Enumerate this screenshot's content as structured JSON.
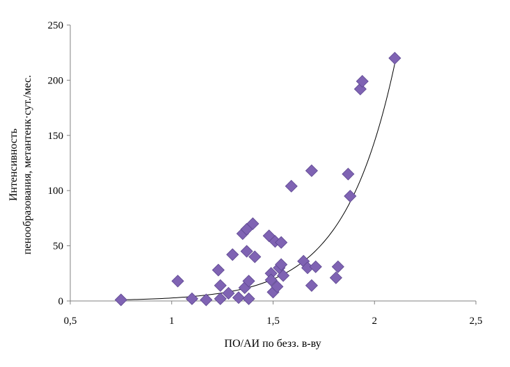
{
  "chart_data": {
    "type": "scatter",
    "title": "",
    "xlabel": "ПО/АИ по безз. в-ву",
    "ylabel_lines": [
      "Интенсивность",
      "пенообразования, метантенк·сут./мес."
    ],
    "xlim": [
      0.5,
      2.5
    ],
    "ylim": [
      0,
      250
    ],
    "xticks": [
      0.5,
      1,
      1.5,
      2,
      2.5
    ],
    "xtick_labels": [
      "0,5",
      "1",
      "1,5",
      "2",
      "2,5"
    ],
    "yticks": [
      0,
      50,
      100,
      150,
      200,
      250
    ],
    "ytick_labels": [
      "0",
      "50",
      "100",
      "150",
      "200",
      "250"
    ],
    "grid": false,
    "marker": "diamond",
    "marker_color": "#7f63b3",
    "trendline": {
      "type": "exponential",
      "x_range": [
        0.75,
        2.1
      ],
      "points": [
        [
          0.75,
          1.0
        ],
        [
          2.1,
          215.0
        ]
      ]
    },
    "points": [
      [
        0.75,
        1
      ],
      [
        1.03,
        18
      ],
      [
        1.1,
        2
      ],
      [
        1.17,
        1
      ],
      [
        1.23,
        28
      ],
      [
        1.24,
        14
      ],
      [
        1.24,
        2
      ],
      [
        1.28,
        7
      ],
      [
        1.3,
        42
      ],
      [
        1.33,
        3
      ],
      [
        1.35,
        61
      ],
      [
        1.36,
        12
      ],
      [
        1.37,
        45
      ],
      [
        1.37,
        65
      ],
      [
        1.38,
        18
      ],
      [
        1.38,
        2
      ],
      [
        1.4,
        70
      ],
      [
        1.41,
        40
      ],
      [
        1.48,
        59
      ],
      [
        1.49,
        25
      ],
      [
        1.49,
        19
      ],
      [
        1.5,
        8
      ],
      [
        1.51,
        54
      ],
      [
        1.52,
        13
      ],
      [
        1.53,
        30
      ],
      [
        1.54,
        53
      ],
      [
        1.54,
        33
      ],
      [
        1.55,
        23
      ],
      [
        1.59,
        104
      ],
      [
        1.65,
        36
      ],
      [
        1.67,
        30
      ],
      [
        1.69,
        118
      ],
      [
        1.69,
        14
      ],
      [
        1.71,
        31
      ],
      [
        1.81,
        21
      ],
      [
        1.82,
        31
      ],
      [
        1.87,
        115
      ],
      [
        1.88,
        95
      ],
      [
        1.93,
        192
      ],
      [
        1.94,
        199
      ],
      [
        2.1,
        220
      ]
    ]
  }
}
